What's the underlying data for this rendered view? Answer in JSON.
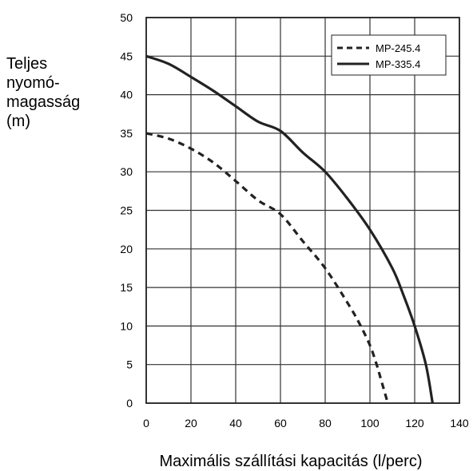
{
  "chart_data": {
    "type": "line",
    "title": "",
    "xlabel": "Maximális szállítási kapacitás (l/perc)",
    "ylabel_lines": [
      "Teljes",
      "nyomó-",
      "magasság",
      "(m)"
    ],
    "xlim": [
      0,
      140
    ],
    "ylim": [
      0,
      50
    ],
    "xticks": [
      "0",
      "20",
      "40",
      "60",
      "80",
      "100",
      "120",
      "140"
    ],
    "yticks": [
      "0",
      "5",
      "10",
      "15",
      "20",
      "25",
      "30",
      "35",
      "40",
      "45",
      "50"
    ],
    "grid": true,
    "legend_position": "top-right",
    "series": [
      {
        "name": "MP-245.4",
        "style": "dashed",
        "color": "#222222",
        "x": [
          0,
          10,
          20,
          30,
          40,
          50,
          60,
          70,
          80,
          90,
          95,
          100,
          103,
          105,
          108
        ],
        "y": [
          35,
          34.3,
          33,
          31.2,
          28.8,
          26.3,
          24.5,
          21,
          17.5,
          13,
          10.5,
          7.5,
          5,
          3,
          0
        ]
      },
      {
        "name": "MP-335.4",
        "style": "solid",
        "color": "#222222",
        "x": [
          0,
          10,
          20,
          30,
          40,
          50,
          60,
          70,
          80,
          90,
          100,
          110,
          115,
          120,
          125,
          128
        ],
        "y": [
          45,
          44,
          42.3,
          40.5,
          38.5,
          36.5,
          35.3,
          32.5,
          30,
          26.5,
          22.5,
          17.5,
          14,
          10,
          5,
          0
        ]
      }
    ]
  }
}
